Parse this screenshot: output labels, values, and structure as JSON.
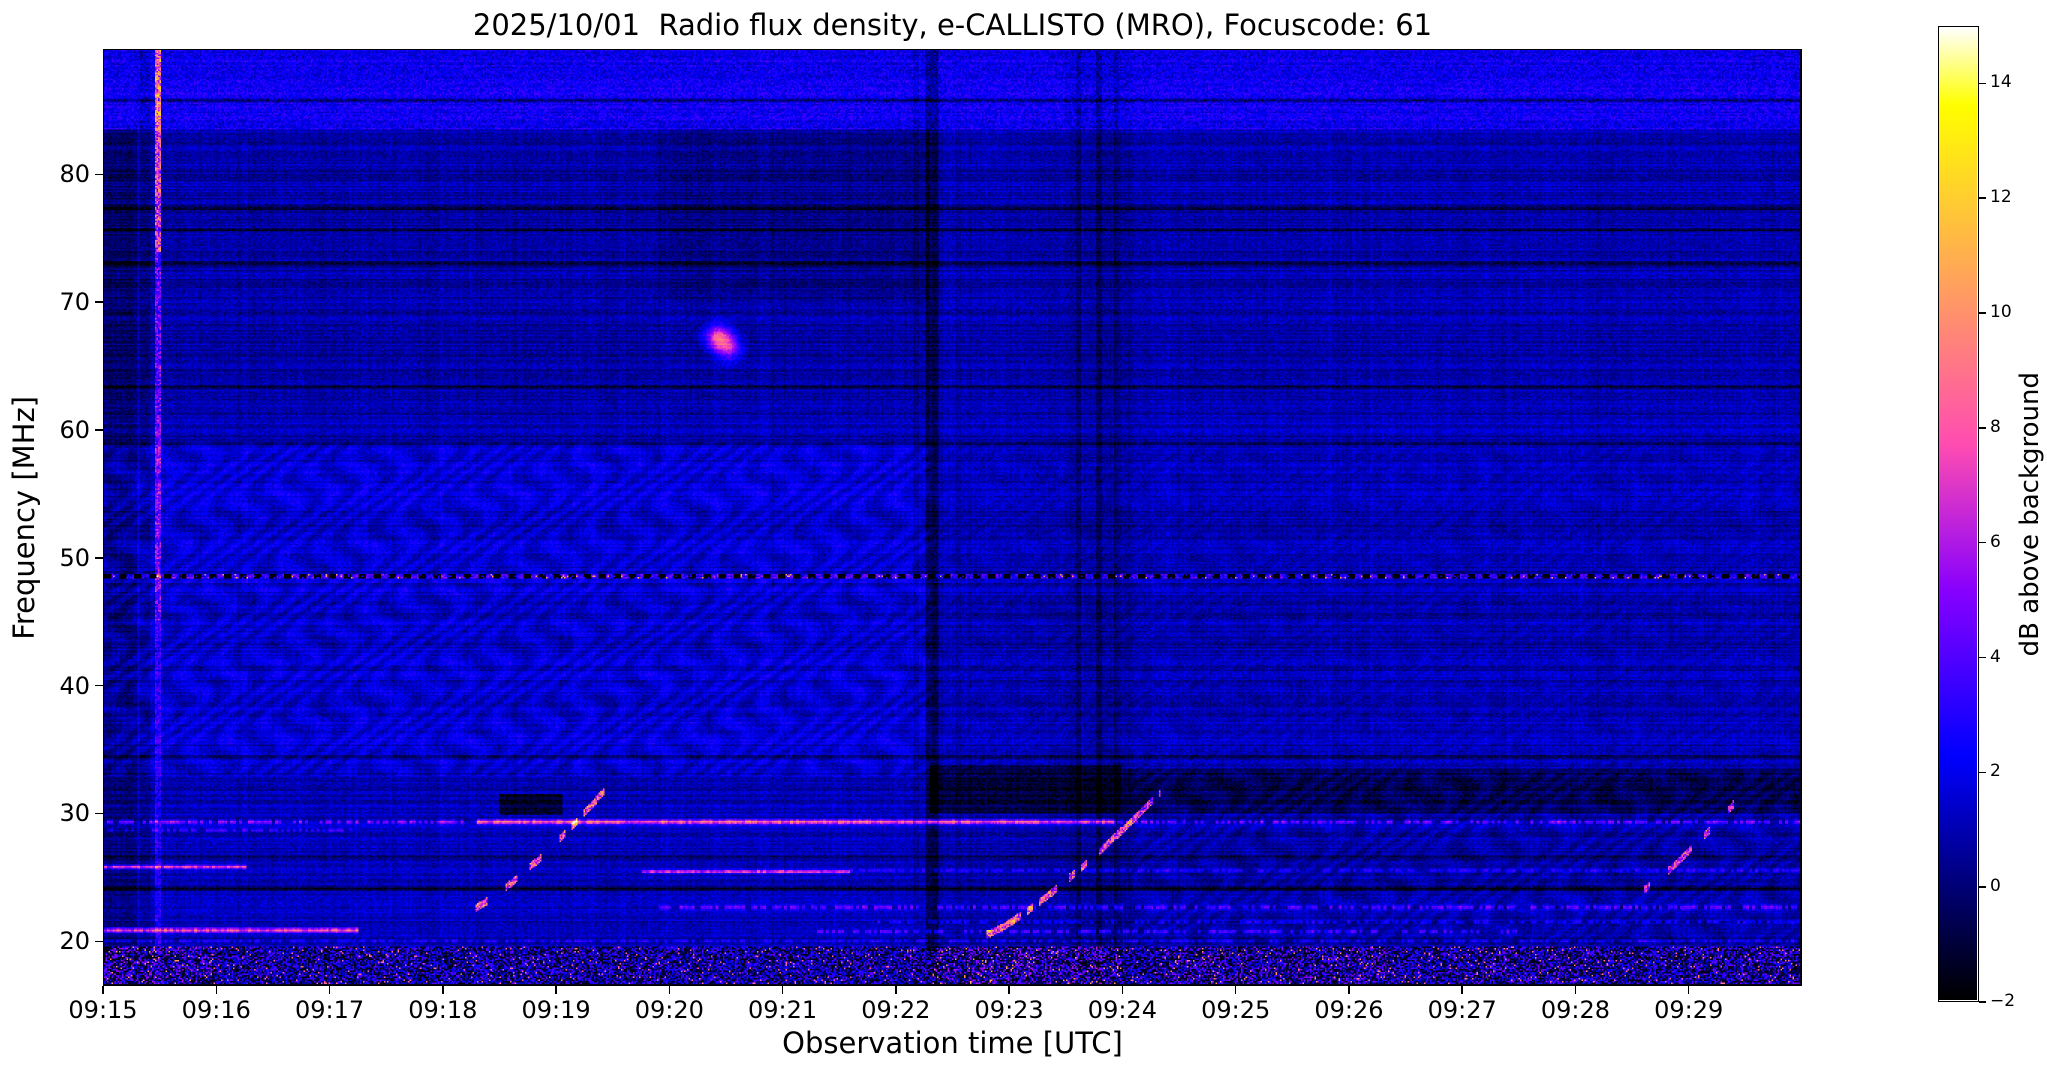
{
  "title": "2025/10/01  Radio flux density, e-CALLISTO (MRO), Focuscode: 61",
  "x_axis": {
    "label": "Observation time [UTC]",
    "ticks": [
      "09:15",
      "09:16",
      "09:17",
      "09:18",
      "09:19",
      "09:20",
      "09:21",
      "09:22",
      "09:23",
      "09:24",
      "09:25",
      "09:26",
      "09:27",
      "09:28",
      "09:29"
    ]
  },
  "y_axis": {
    "label": "Frequency [MHz]",
    "ticks": [
      80,
      70,
      60,
      50,
      40,
      30,
      20
    ]
  },
  "colorbar": {
    "label": "dB above background",
    "ticks": [
      14,
      12,
      10,
      8,
      6,
      4,
      2,
      0,
      -2
    ],
    "tick_labels": [
      "14",
      "12",
      "10",
      "8",
      "6",
      "4",
      "2",
      "0",
      "−2"
    ],
    "vmin": -2,
    "vmax": 15,
    "colormap": "gnuplot2"
  },
  "chart_data": {
    "type": "heatmap",
    "title": "2025/10/01  Radio flux density, e-CALLISTO (MRO), Focuscode: 61",
    "date": "2025/10/01",
    "instrument": "e-CALLISTO (MRO)",
    "focuscode": 61,
    "x": {
      "start_utc": "09:15:00",
      "end_utc": "09:30:00",
      "tick_interval_min": 1
    },
    "y": {
      "min_mhz": 16.5,
      "max_mhz": 89.8
    },
    "z": {
      "label": "dB above background",
      "min": -2,
      "max": 15
    },
    "features": {
      "background": {
        "base": 0.55,
        "noise": 1.4,
        "row_striation": 1.1,
        "col_striation": 0.45
      },
      "top_strip": {
        "f_min": 83.6,
        "base": 1.1,
        "noise": 2.4
      },
      "dark_lines_mhz": [
        85.9,
        77.4,
        75.7,
        73.1,
        63.4,
        58.9,
        34.3,
        26.45,
        23.95
      ],
      "dashed_line": {
        "f": 48.55,
        "hw": 0.17
      },
      "region_shifts": [
        {
          "f0": 59,
          "f1": 83.6,
          "t0": 0,
          "t1": 7.3,
          "dv": -0.45
        },
        {
          "f0": 16.5,
          "f1": 83.6,
          "t0": 7.32,
          "t1": 15,
          "dv": -0.3
        },
        {
          "f0": 70,
          "f1": 83.6,
          "t0": 4.9,
          "t1": 7.3,
          "dv": -0.5
        },
        {
          "f0": 16.5,
          "f1": 83.6,
          "t0": 0,
          "t1": 0.28,
          "dv": -1.0
        },
        {
          "f0": 16.5,
          "f1": 33,
          "t0": 0,
          "t1": 15,
          "dv": -0.2
        },
        {
          "f0": 32.8,
          "f1": 59,
          "t0": 0,
          "t1": 7.3,
          "dv": 0.18
        }
      ],
      "wavy_bands": [
        {
          "f0": 32.8,
          "f1": 59,
          "t0": 0,
          "t1": 7.3,
          "amp": 0.55
        },
        {
          "f0": 32.8,
          "f1": 59,
          "t0": 7.3,
          "t1": 15,
          "amp": 0.2
        },
        {
          "f0": 19.5,
          "f1": 33,
          "t0": 9.1,
          "t1": 15,
          "amp": 0.45
        }
      ],
      "dark_blocks": [
        {
          "t0": 3.5,
          "t1": 4.05,
          "f0": 29.7,
          "f1": 31.4,
          "dv": -2.2
        },
        {
          "t0": 7.3,
          "t1": 9.0,
          "f0": 29.8,
          "f1": 33.6,
          "dv": -1.7
        },
        {
          "t0": 9.0,
          "t1": 15,
          "f0": 29.8,
          "f1": 33.4,
          "dv": -1.2
        }
      ],
      "dark_columns": [
        {
          "t": 7.32,
          "w": 0.055,
          "dv": -1.6
        },
        {
          "t": 7.18,
          "w": 0.03,
          "dv": -0.7
        },
        {
          "t": 8.62,
          "w": 0.025,
          "dv": -1.0
        },
        {
          "t": 8.8,
          "w": 0.03,
          "dv": -1.1
        },
        {
          "t": 8.95,
          "w": 0.02,
          "dv": -0.8
        },
        {
          "t": 8.8,
          "w": 0.3,
          "dv": -0.35
        },
        {
          "t": 0.36,
          "w": 0.05,
          "dv": -0.7
        }
      ],
      "bright_column": {
        "t0": 0.44,
        "t1": 0.5,
        "amp_low": 2.0,
        "amp_mid": 4.2,
        "amp_high": 7.5,
        "f_mid": 45,
        "f_high": 74
      },
      "bands": [
        {
          "f": 29.2,
          "hw": 0.28,
          "t0": 0,
          "t1": 3.3,
          "amp": 4.5,
          "speckle": true
        },
        {
          "f": 29.2,
          "hw": 0.3,
          "t0": 3.3,
          "t1": 8.95,
          "amp": 7.2,
          "speckle": false
        },
        {
          "f": 29.2,
          "hw": 0.26,
          "t0": 8.95,
          "t1": 15,
          "amp": 4.2,
          "speckle": true
        },
        {
          "f": 28.55,
          "hw": 0.2,
          "t0": 0,
          "t1": 2.3,
          "amp": 3.2,
          "speckle": true
        },
        {
          "f": 25.65,
          "hw": 0.24,
          "t0": 0,
          "t1": 1.25,
          "amp": 6.8,
          "speckle": false
        },
        {
          "f": 25.25,
          "hw": 0.22,
          "t0": 4.75,
          "t1": 6.6,
          "amp": 6.5,
          "speckle": false
        },
        {
          "f": 25.35,
          "hw": 0.2,
          "t0": 6.6,
          "t1": 15,
          "amp": 2.6,
          "speckle": true
        },
        {
          "f": 22.45,
          "hw": 0.26,
          "t0": 4.9,
          "t1": 15,
          "amp": 4.6,
          "speckle": true
        },
        {
          "f": 21.3,
          "hw": 0.2,
          "t0": 6.8,
          "t1": 15,
          "amp": 2.8,
          "speckle": true
        },
        {
          "f": 20.65,
          "hw": 0.3,
          "t0": 0,
          "t1": 2.25,
          "amp": 7.4,
          "speckle": false
        },
        {
          "f": 20.55,
          "hw": 0.25,
          "t0": 6.3,
          "t1": 12.5,
          "amp": 3.8,
          "speckle": true
        },
        {
          "f": 19.8,
          "hw": 0.22,
          "t0": 0,
          "t1": 15,
          "amp": 2.2,
          "speckle": true
        }
      ],
      "sweeps": [
        {
          "t0": 3.25,
          "t1": 4.42,
          "f0": 22.3,
          "f1": 31.6,
          "amp": 8
        },
        {
          "t0": 7.8,
          "t1": 9.35,
          "f0": 20.3,
          "f1": 31.6,
          "amp": 8
        },
        {
          "t0": 13.5,
          "t1": 14.42,
          "f0": 23.2,
          "f1": 30.6,
          "amp": 7
        }
      ],
      "bottom_speckle": {
        "f_max": 19.35,
        "clusters": [
          {
            "t0": 0,
            "t1": 0.95,
            "gain": 1.5
          },
          {
            "t0": 7.35,
            "t1": 9.0,
            "gain": 1.55
          },
          {
            "t0": 9.3,
            "t1": 11.4,
            "gain": 1.35
          },
          {
            "t0": 12.1,
            "t1": 13.3,
            "gain": 1.25
          },
          {
            "t0": 14.0,
            "t1": 15,
            "gain": 1.2
          }
        ]
      },
      "dots": [
        {
          "t": 5.43,
          "f": 67.3,
          "amp": 7
        },
        {
          "t": 5.52,
          "f": 66.4,
          "amp": 5
        }
      ]
    }
  }
}
